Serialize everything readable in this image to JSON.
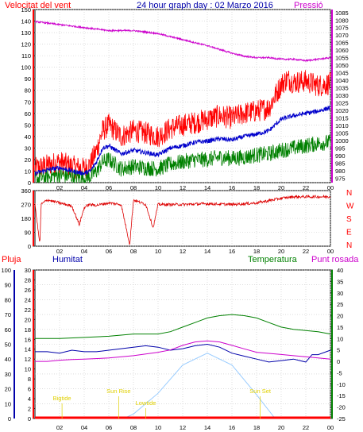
{
  "header": {
    "left_title": "Velocitat del vent",
    "center_title": "24 hour graph day : 02 Marzo 2016",
    "right_title": "Pressió"
  },
  "colors": {
    "wind_speed": "#ff0000",
    "wind_avg": "#0000cc",
    "wind_low": "#008000",
    "pressure": "#cc00cc",
    "direction": "#dd0000",
    "rain": "#ff0000",
    "humidity": "#0000aa",
    "temperature": "#008000",
    "dew_point": "#cc00cc",
    "solar": "#99ccff",
    "astro": "#e0d000",
    "left_axis": "#ff0000",
    "pressure_axis": "#cc00cc"
  },
  "chart_data": [
    {
      "type": "line",
      "name": "wind-pressure",
      "x_ticks": [
        "02",
        "04",
        "06",
        "08",
        "10",
        "12",
        "14",
        "16",
        "18",
        "20",
        "22",
        "00"
      ],
      "x_range": [
        0,
        24
      ],
      "ylim": [
        0,
        150
      ],
      "y_ticks": [
        0,
        10,
        20,
        30,
        40,
        50,
        60,
        70,
        80,
        90,
        100,
        110,
        120,
        130,
        140,
        150
      ],
      "y2lim": [
        972,
        1087
      ],
      "y2_ticks": [
        975,
        980,
        985,
        990,
        995,
        1000,
        1005,
        1010,
        1015,
        1020,
        1025,
        1030,
        1035,
        1040,
        1045,
        1050,
        1055,
        1060,
        1065,
        1070,
        1075,
        1080,
        1085
      ],
      "grid": true,
      "series": [
        {
          "key": "gust",
          "x": [
            0,
            1,
            2,
            3,
            4,
            4.5,
            5,
            5.5,
            6,
            7,
            8,
            9,
            10,
            11,
            12,
            13,
            14,
            15,
            16,
            17,
            18,
            19,
            20,
            20.5,
            21,
            22,
            23,
            24
          ],
          "values": [
            12,
            15,
            18,
            14,
            12,
            16,
            28,
            45,
            50,
            40,
            45,
            43,
            40,
            47,
            50,
            52,
            55,
            58,
            56,
            60,
            62,
            65,
            85,
            90,
            87,
            88,
            84,
            86
          ]
        },
        {
          "key": "average",
          "x": [
            0,
            1,
            2,
            3,
            4,
            4.5,
            5,
            5.5,
            6,
            7,
            8,
            9,
            10,
            11,
            12,
            13,
            14,
            15,
            16,
            17,
            18,
            19,
            20,
            21,
            22,
            23,
            24
          ],
          "values": [
            8,
            11,
            13,
            10,
            8,
            10,
            18,
            30,
            32,
            25,
            28,
            26,
            24,
            30,
            32,
            35,
            36,
            38,
            37,
            40,
            42,
            45,
            55,
            58,
            60,
            62,
            65
          ]
        },
        {
          "key": "minimum",
          "x": [
            0,
            1,
            2,
            3,
            4,
            4.5,
            5,
            5.5,
            6,
            7,
            8,
            9,
            10,
            11,
            12,
            13,
            14,
            15,
            16,
            17,
            18,
            19,
            20,
            21,
            22,
            23,
            24
          ],
          "values": [
            3,
            5,
            7,
            5,
            4,
            5,
            10,
            18,
            20,
            12,
            14,
            13,
            12,
            16,
            18,
            20,
            20,
            22,
            21,
            22,
            24,
            25,
            28,
            30,
            32,
            34,
            35
          ]
        },
        {
          "key": "pressure",
          "x": [
            0,
            2,
            4,
            6,
            8,
            10,
            12,
            14,
            16,
            17,
            18,
            19,
            20,
            21,
            22,
            23,
            24
          ],
          "values": [
            1079,
            1077,
            1075,
            1073,
            1073,
            1071,
            1067,
            1063,
            1058,
            1056,
            1055,
            1055,
            1054,
            1054,
            1053,
            1054,
            1055
          ]
        }
      ]
    },
    {
      "type": "scatter",
      "name": "wind-direction",
      "x_range": [
        0,
        24
      ],
      "ylim": [
        0,
        360
      ],
      "y_ticks": [
        0,
        90,
        180,
        270,
        360
      ],
      "compass_labels": [
        "N",
        "W",
        "S",
        "E",
        "N"
      ],
      "grid": true,
      "x": [
        0,
        0.4,
        0.5,
        1,
        2,
        3,
        3.4,
        3.6,
        4,
        4.4,
        5,
        6,
        7,
        7.7,
        8,
        9,
        9.6,
        10,
        12,
        14,
        16,
        18,
        20,
        21,
        22,
        24
      ],
      "values": [
        270,
        10,
        270,
        300,
        280,
        260,
        180,
        140,
        250,
        270,
        265,
        280,
        270,
        10,
        300,
        270,
        120,
        270,
        270,
        275,
        270,
        280,
        310,
        320,
        320,
        320
      ]
    },
    {
      "type": "line",
      "name": "rain-humidity-temperature",
      "x_range": [
        0,
        24
      ],
      "left_axis_ticks": [
        0,
        10,
        20,
        30,
        40,
        50,
        60,
        70,
        80,
        90,
        100
      ],
      "left_axis_lim": [
        0,
        100
      ],
      "rain_axis_ticks": [
        0,
        2,
        4,
        6,
        8,
        10,
        12,
        14,
        16,
        18,
        20,
        22,
        24,
        26,
        28,
        30
      ],
      "rain_axis_lim": [
        0,
        30
      ],
      "temp_axis_ticks": [
        -25,
        -20,
        -15,
        -10,
        -5,
        0,
        5,
        10,
        15,
        20,
        25,
        30,
        35,
        40
      ],
      "temp_axis_lim": [
        -25,
        40
      ],
      "grid": true,
      "labels": {
        "rain": "Pluja",
        "humidity": "Humitat",
        "temperature": "Temperatura",
        "dew_point": "Punt rosada"
      },
      "series": [
        {
          "key": "temperature",
          "x": [
            0,
            2,
            4,
            6,
            8,
            10,
            11,
            12,
            13,
            14,
            15,
            16,
            17,
            18,
            19,
            20,
            21,
            22,
            23,
            24
          ],
          "values": [
            10,
            10,
            10.5,
            11,
            12,
            12,
            13,
            15,
            17,
            19,
            20,
            20.5,
            20,
            19,
            17,
            15,
            14,
            13.5,
            13,
            12
          ]
        },
        {
          "key": "humidity",
          "x": [
            0,
            1,
            2,
            3,
            4,
            5,
            6,
            7,
            8,
            9,
            10,
            11,
            12,
            13,
            14,
            15,
            16,
            17,
            18,
            19,
            20,
            21,
            22,
            22.5,
            23,
            24
          ],
          "values": [
            45,
            45,
            44,
            46,
            45,
            45,
            46,
            47,
            48,
            49,
            48,
            46,
            47,
            49,
            50,
            48,
            44,
            42,
            40,
            38,
            39,
            40,
            38,
            43,
            43,
            46
          ]
        },
        {
          "key": "dew_point",
          "x": [
            0,
            1,
            2,
            3,
            4,
            6,
            8,
            10,
            11,
            12,
            13,
            14,
            15,
            16,
            17,
            18,
            19,
            20,
            21,
            22,
            23,
            24
          ],
          "values": [
            0,
            0,
            0.5,
            0.8,
            1,
            1.5,
            2.5,
            4,
            5,
            7,
            8.5,
            9,
            8.5,
            7,
            5.5,
            4,
            3.5,
            3,
            2.5,
            2,
            1.5,
            1
          ]
        },
        {
          "key": "solar",
          "x": [
            7.2,
            8,
            10,
            12,
            14,
            16,
            18,
            19.5
          ],
          "values": [
            0,
            3,
            17,
            36,
            44,
            36,
            16,
            0
          ]
        },
        {
          "key": "rain",
          "x": [
            0,
            24
          ],
          "values": [
            0,
            0
          ]
        }
      ],
      "annotations": [
        {
          "text": "Sun Rise",
          "x": 6.8
        },
        {
          "text": "Sun Set",
          "x": 18.3
        },
        {
          "text": "Lowtide",
          "x": 9
        },
        {
          "text": "Bigtide",
          "x": 2.2
        }
      ]
    }
  ]
}
